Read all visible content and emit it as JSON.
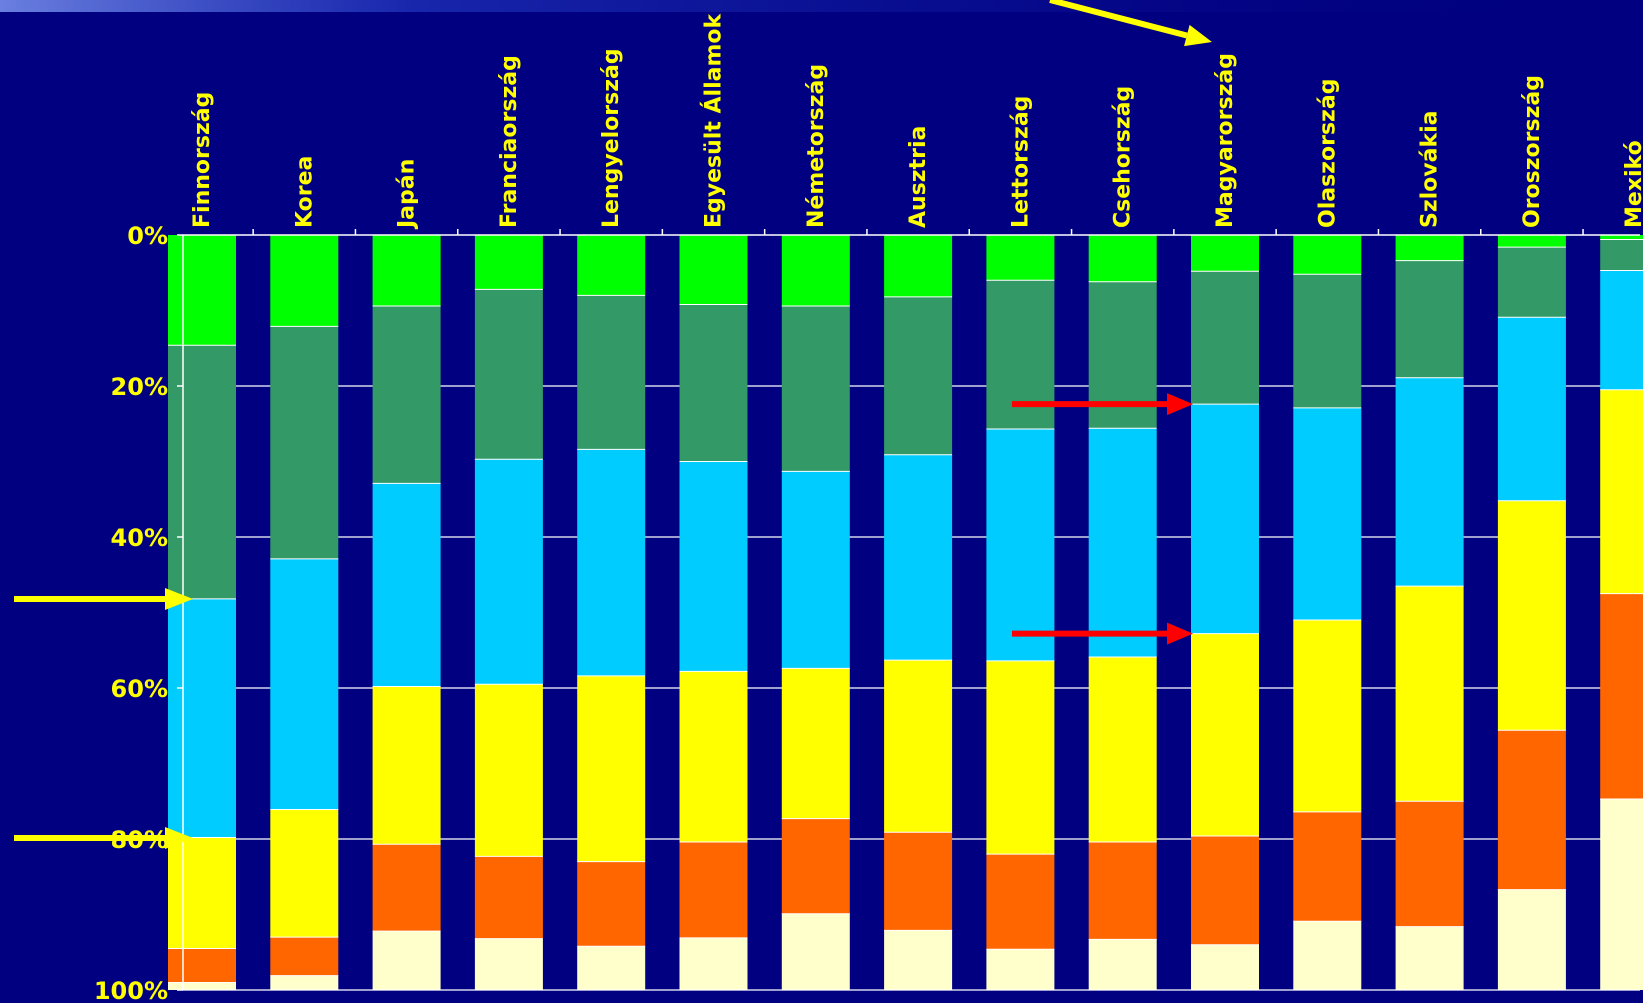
{
  "chart_data": {
    "type": "bar",
    "stacked": true,
    "orientation": "vertical",
    "y_axis_inverted": true,
    "ylim": [
      0,
      100
    ],
    "y_ticks": [
      "0%",
      "20%",
      "40%",
      "60%",
      "80%",
      "100%"
    ],
    "grid": true,
    "legend": "none",
    "categories": [
      "Finnország",
      "Korea",
      "Japán",
      "Franciaország",
      "Lengyelország",
      "Egyesült Államok",
      "Németország",
      "Ausztria",
      "Lettország",
      "Csehország",
      "Magyarország",
      "Olaszország",
      "Szlovákia",
      "Oroszország",
      "Mexikó"
    ],
    "series": [
      {
        "color": "#00ff00",
        "values": [
          14.6,
          12.1,
          9.4,
          7.2,
          8.0,
          9.2,
          9.4,
          8.2,
          6.0,
          6.2,
          4.8,
          5.2,
          3.4,
          1.6,
          0.6
        ]
      },
      {
        "color": "#339966",
        "values": [
          33.6,
          30.8,
          23.5,
          22.5,
          20.4,
          20.8,
          21.9,
          20.9,
          19.7,
          19.4,
          17.6,
          17.7,
          15.5,
          9.3,
          4.1
        ]
      },
      {
        "color": "#00ccff",
        "values": [
          31.6,
          33.2,
          26.9,
          29.8,
          30.0,
          27.8,
          26.1,
          27.2,
          30.7,
          30.3,
          30.4,
          28.1,
          27.6,
          24.3,
          15.8
        ]
      },
      {
        "color": "#ffff00",
        "values": [
          14.7,
          16.9,
          20.9,
          22.8,
          24.6,
          22.6,
          19.9,
          22.8,
          25.6,
          24.5,
          26.8,
          25.4,
          28.5,
          30.4,
          27.0
        ]
      },
      {
        "color": "#ff6600",
        "values": [
          4.5,
          5.1,
          11.5,
          10.9,
          11.2,
          12.7,
          12.6,
          13.0,
          12.6,
          12.9,
          14.4,
          14.5,
          16.6,
          21.1,
          27.2
        ]
      },
      {
        "color": "#ffffcc",
        "values": [
          1.0,
          1.9,
          7.8,
          6.8,
          5.8,
          6.9,
          10.1,
          7.9,
          5.4,
          6.7,
          6.0,
          9.1,
          8.4,
          13.3,
          25.3
        ]
      }
    ],
    "annotations": {
      "yellow_arrows": [
        "top → Magyarország",
        "left → 48%",
        "left → 80%"
      ],
      "red_arrows": [
        "→ Magyarország at 22.4%",
        "→ Magyarország at 52.8%"
      ]
    }
  },
  "colors": {
    "background": "#000080",
    "label": "#ffff00",
    "axis": "#ffffff",
    "grid": "#ffffff",
    "yellow_arrow": "#ffff00",
    "red_arrow": "#ff0000"
  }
}
